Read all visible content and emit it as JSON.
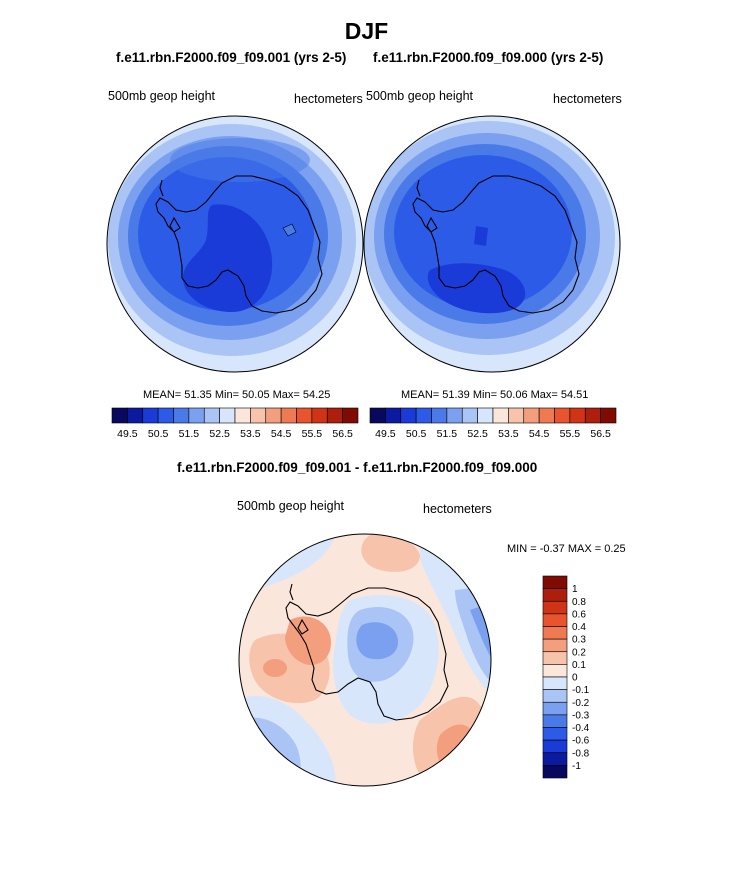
{
  "title": "DJF",
  "panels": [
    {
      "case": "f.e11.rbn.F2000.f09_f09.001 (yrs 2-5)",
      "left_label": "500mb geop height",
      "right_label": "hectometers",
      "stats": "MEAN=  51.35  Min=  50.05  Max=  54.25"
    },
    {
      "case": "f.e11.rbn.F2000.f09_f09.000 (yrs 2-5)",
      "left_label": "500mb geop height",
      "right_label": "hectometers",
      "stats": "MEAN=  51.39  Min=  50.06  Max=  54.51"
    }
  ],
  "diff_panel": {
    "title": "f.e11.rbn.F2000.f09_f09.001 - f.e11.rbn.F2000.f09_f09.000",
    "left_label": "500mb geop height",
    "right_label": "hectometers",
    "stats": "MIN =  -0.37 MAX =   0.25"
  },
  "abs_colorbar": {
    "tick_labels": [
      "49.5",
      "50.5",
      "51.5",
      "52.5",
      "53.5",
      "54.5",
      "55.5",
      "56.5"
    ],
    "colors": [
      "#08085e",
      "#0c1aa0",
      "#1a3bd8",
      "#2c5be8",
      "#4a7ae8",
      "#7ba0ef",
      "#a9c4f5",
      "#d8e6fb",
      "#fbe6dc",
      "#f7c3ab",
      "#f39f7e",
      "#ef7a52",
      "#e8542e",
      "#d03417",
      "#ad1e0c",
      "#7f0b04"
    ]
  },
  "diff_colorbar": {
    "labels": [
      "1",
      "0.8",
      "0.6",
      "0.4",
      "0.3",
      "0.2",
      "0.1",
      "0",
      "-0.1",
      "-0.2",
      "-0.3",
      "-0.4",
      "-0.6",
      "-0.8",
      "-1"
    ],
    "colors": [
      "#7f0b04",
      "#ad1e0c",
      "#d03417",
      "#e8542e",
      "#ef7a52",
      "#f39f7e",
      "#f7c3ab",
      "#fbe6dc",
      "#d8e6fb",
      "#a9c4f5",
      "#7ba0ef",
      "#4a7ae8",
      "#2c5be8",
      "#1a3bd8",
      "#0c1aa0",
      "#08085e"
    ]
  }
}
